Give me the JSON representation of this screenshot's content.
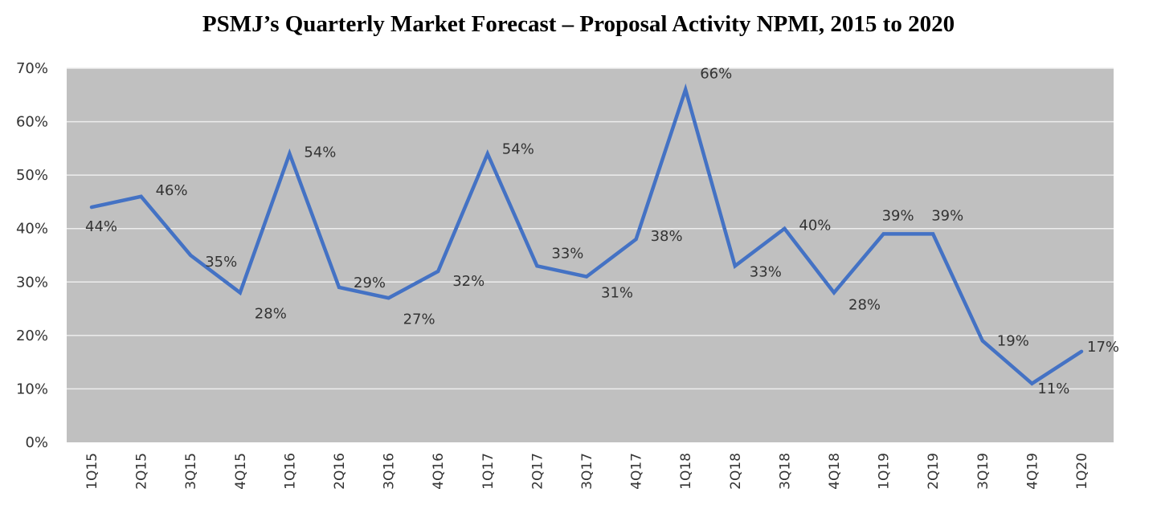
{
  "chart_data": {
    "type": "line",
    "title": "PSMJ’s Quarterly Market Forecast – Proposal Activity NPMI, 2015 to 2020",
    "xlabel": "",
    "ylabel": "",
    "categories": [
      "1Q15",
      "2Q15",
      "3Q15",
      "4Q15",
      "1Q16",
      "2Q16",
      "3Q16",
      "4Q16",
      "1Q17",
      "2Q17",
      "3Q17",
      "4Q17",
      "1Q18",
      "2Q18",
      "3Q18",
      "4Q18",
      "1Q19",
      "2Q19",
      "3Q19",
      "4Q19",
      "1Q20"
    ],
    "series": [
      {
        "values": [
          44,
          46,
          35,
          28,
          54,
          29,
          27,
          32,
          54,
          33,
          31,
          38,
          66,
          33,
          40,
          28,
          39,
          39,
          19,
          11,
          17
        ],
        "color": "#4472C4"
      }
    ],
    "data_labels": [
      "44%",
      "46%",
      "35%",
      "28%",
      "54%",
      "29%",
      "27%",
      "32%",
      "54%",
      "33%",
      "31%",
      "38%",
      "66%",
      "33%",
      "40%",
      "28%",
      "39%",
      "39%",
      "19%",
      "11%",
      "17%"
    ],
    "ylim": [
      0,
      70
    ],
    "yticks": [
      0,
      10,
      20,
      30,
      40,
      50,
      60,
      70
    ],
    "ytick_labels": [
      "0%",
      "10%",
      "20%",
      "30%",
      "40%",
      "50%",
      "60%",
      "70%"
    ],
    "grid": true,
    "plot_background": "#C0C0C0",
    "gridline_color": "#EDEDED",
    "legend": "none"
  }
}
